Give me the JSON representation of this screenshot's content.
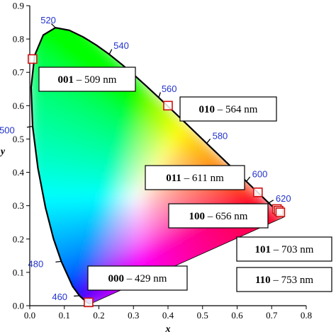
{
  "chart_data": {
    "type": "scatter",
    "title": "",
    "xlabel": "x",
    "ylabel": "y",
    "xlim": [
      0.0,
      0.8
    ],
    "ylim": [
      0.0,
      0.9
    ],
    "x_ticks": [
      "0.0",
      "0.1",
      "0.2",
      "0.3",
      "0.4",
      "0.5",
      "0.6",
      "0.7",
      "0.8"
    ],
    "y_ticks": [
      "0.0",
      "0.1",
      "0.2",
      "0.3",
      "0.4",
      "0.5",
      "0.6",
      "0.7",
      "0.8",
      "0.9"
    ],
    "grid": false,
    "spectral_locus": [
      [
        0.1741,
        0.005
      ],
      [
        0.1666,
        0.0089
      ],
      [
        0.144,
        0.0297
      ],
      [
        0.1241,
        0.0578
      ],
      [
        0.0913,
        0.1327
      ],
      [
        0.0687,
        0.2007
      ],
      [
        0.0454,
        0.295
      ],
      [
        0.0235,
        0.4127
      ],
      [
        0.0082,
        0.5384
      ],
      [
        0.0039,
        0.6548
      ],
      [
        0.0139,
        0.7502
      ],
      [
        0.0389,
        0.812
      ],
      [
        0.0743,
        0.8338
      ],
      [
        0.1142,
        0.8262
      ],
      [
        0.1547,
        0.8059
      ],
      [
        0.1929,
        0.7816
      ],
      [
        0.2296,
        0.7543
      ],
      [
        0.2658,
        0.7243
      ],
      [
        0.3016,
        0.6923
      ],
      [
        0.3373,
        0.6589
      ],
      [
        0.3731,
        0.6245
      ],
      [
        0.4087,
        0.5896
      ],
      [
        0.4441,
        0.5547
      ],
      [
        0.4788,
        0.5202
      ],
      [
        0.5125,
        0.4866
      ],
      [
        0.5448,
        0.4544
      ],
      [
        0.5752,
        0.4242
      ],
      [
        0.6029,
        0.3965
      ],
      [
        0.627,
        0.3725
      ],
      [
        0.6482,
        0.3514
      ],
      [
        0.6658,
        0.334
      ],
      [
        0.6801,
        0.3197
      ],
      [
        0.6915,
        0.3083
      ],
      [
        0.7006,
        0.2993
      ],
      [
        0.7079,
        0.292
      ],
      [
        0.714,
        0.2859
      ],
      [
        0.719,
        0.2809
      ],
      [
        0.723,
        0.277
      ],
      [
        0.726,
        0.274
      ],
      [
        0.7283,
        0.2717
      ],
      [
        0.73,
        0.27
      ],
      [
        0.732,
        0.268
      ],
      [
        0.7347,
        0.2653
      ]
    ],
    "wavelength_labels": [
      {
        "text": "460",
        "x": 0.144,
        "y": 0.03
      },
      {
        "text": "480",
        "x": 0.091,
        "y": 0.133
      },
      {
        "text": "500",
        "x": 0.008,
        "y": 0.538
      },
      {
        "text": "520",
        "x": 0.074,
        "y": 0.834
      },
      {
        "text": "540",
        "x": 0.23,
        "y": 0.754
      },
      {
        "text": "560",
        "x": 0.373,
        "y": 0.624
      },
      {
        "text": "580",
        "x": 0.512,
        "y": 0.487
      },
      {
        "text": "600",
        "x": 0.627,
        "y": 0.373
      },
      {
        "text": "620",
        "x": 0.691,
        "y": 0.308
      }
    ],
    "series": [
      {
        "points": [
          {
            "code": "000",
            "wavelength": "429 nm",
            "x": 0.17,
            "y": 0.01
          },
          {
            "code": "001",
            "wavelength": "509 nm",
            "x": 0.008,
            "y": 0.74
          },
          {
            "code": "010",
            "wavelength": "564 nm",
            "x": 0.4,
            "y": 0.6
          },
          {
            "code": "011",
            "wavelength": "611 nm",
            "x": 0.66,
            "y": 0.34
          },
          {
            "code": "100",
            "wavelength": "656 nm",
            "x": 0.715,
            "y": 0.29
          },
          {
            "code": "101",
            "wavelength": "703 nm",
            "x": 0.72,
            "y": 0.285
          },
          {
            "code": "110",
            "wavelength": "753 nm",
            "x": 0.725,
            "y": 0.28
          }
        ]
      }
    ]
  }
}
